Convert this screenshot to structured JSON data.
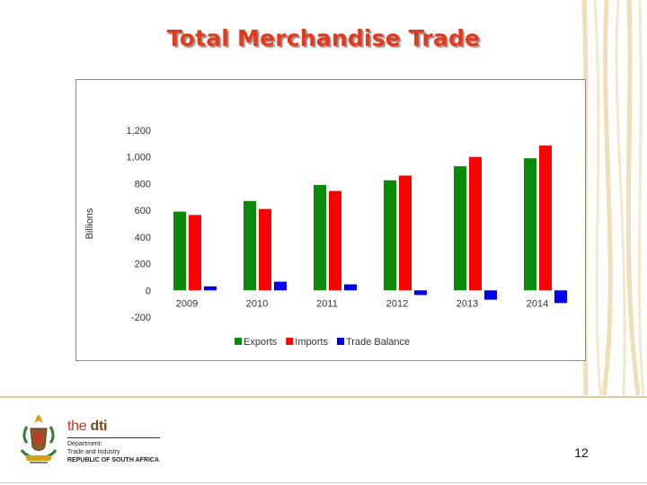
{
  "slide": {
    "title": "Total Merchandise Trade",
    "page_number": "12"
  },
  "branding": {
    "logo_prefix": "the",
    "logo_name": "dti",
    "department_lines": [
      "Department:",
      "Trade and Industry"
    ],
    "country": "REPUBLIC OF SOUTH AFRICA"
  },
  "chart_data": {
    "type": "bar",
    "title": "",
    "xlabel": "",
    "ylabel": "Billions",
    "categories": [
      "2009",
      "2010",
      "2011",
      "2012",
      "2013",
      "2014"
    ],
    "series": [
      {
        "name": "Exports",
        "color": "#0a8a0a",
        "values": [
          590,
          670,
          790,
          825,
          930,
          990
        ]
      },
      {
        "name": "Imports",
        "color": "#ff0000",
        "values": [
          565,
          610,
          745,
          860,
          1000,
          1085
        ]
      },
      {
        "name": "Trade Balance",
        "color": "#0000ee",
        "values": [
          30,
          65,
          45,
          -35,
          -70,
          -95
        ]
      }
    ],
    "ylim": [
      -200,
      1200
    ],
    "yticks": [
      "-200",
      "0",
      "200",
      "400",
      "600",
      "800",
      "1,000",
      "1,200"
    ],
    "legend_position": "bottom",
    "grid": false
  },
  "colors": {
    "title": "#e03a1e",
    "accent_stripes": "#e9c98a"
  }
}
